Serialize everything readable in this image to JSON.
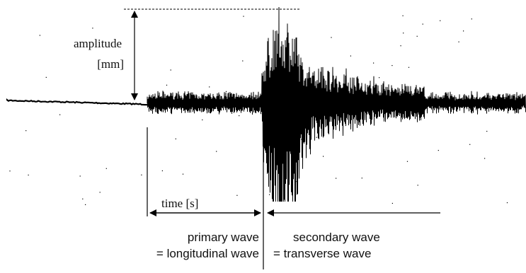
{
  "labels": {
    "amplitude_line1": "amplitude",
    "amplitude_line2": "[mm]",
    "time": "time [s]",
    "primary_line1": "primary wave",
    "primary_line2": "= longitudinal wave",
    "secondary_line1": "secondary wave",
    "secondary_line2": "= transverse wave"
  },
  "colors": {
    "ink": "#000000",
    "background": "#ffffff"
  }
}
